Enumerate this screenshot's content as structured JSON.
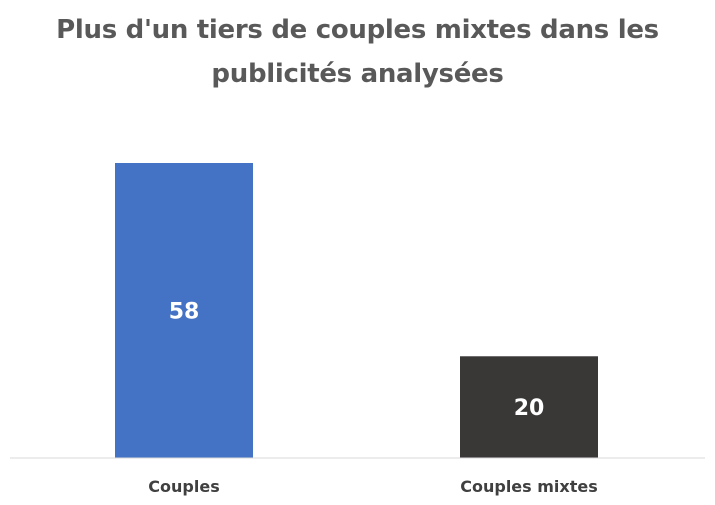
{
  "chart_data": {
    "type": "bar",
    "title_lines": [
      "Plus d'un tiers de couples mixtes dans les",
      "publicités analysées"
    ],
    "categories": [
      "Couples",
      "Couples mixtes"
    ],
    "values": [
      58,
      20
    ],
    "data_labels": [
      "58",
      "20"
    ],
    "colors": [
      "#4472C4",
      "#3A3837"
    ],
    "ylim": [
      0,
      60
    ],
    "grid": false,
    "legend": "none",
    "xlabel": "",
    "ylabel": ""
  }
}
